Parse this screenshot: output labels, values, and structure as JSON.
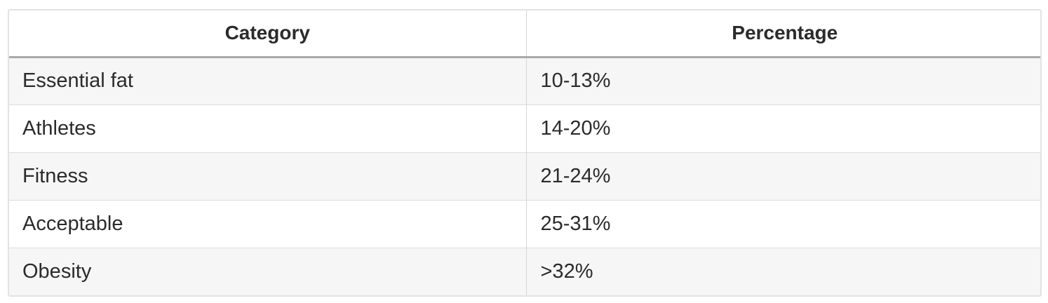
{
  "table": {
    "headers": [
      "Category",
      "Percentage"
    ],
    "rows": [
      [
        "Essential fat",
        "10-13%"
      ],
      [
        "Athletes",
        "14-20%"
      ],
      [
        "Fitness",
        "21-24%"
      ],
      [
        "Acceptable",
        "25-31%"
      ],
      [
        "Obesity",
        ">32%"
      ]
    ]
  }
}
